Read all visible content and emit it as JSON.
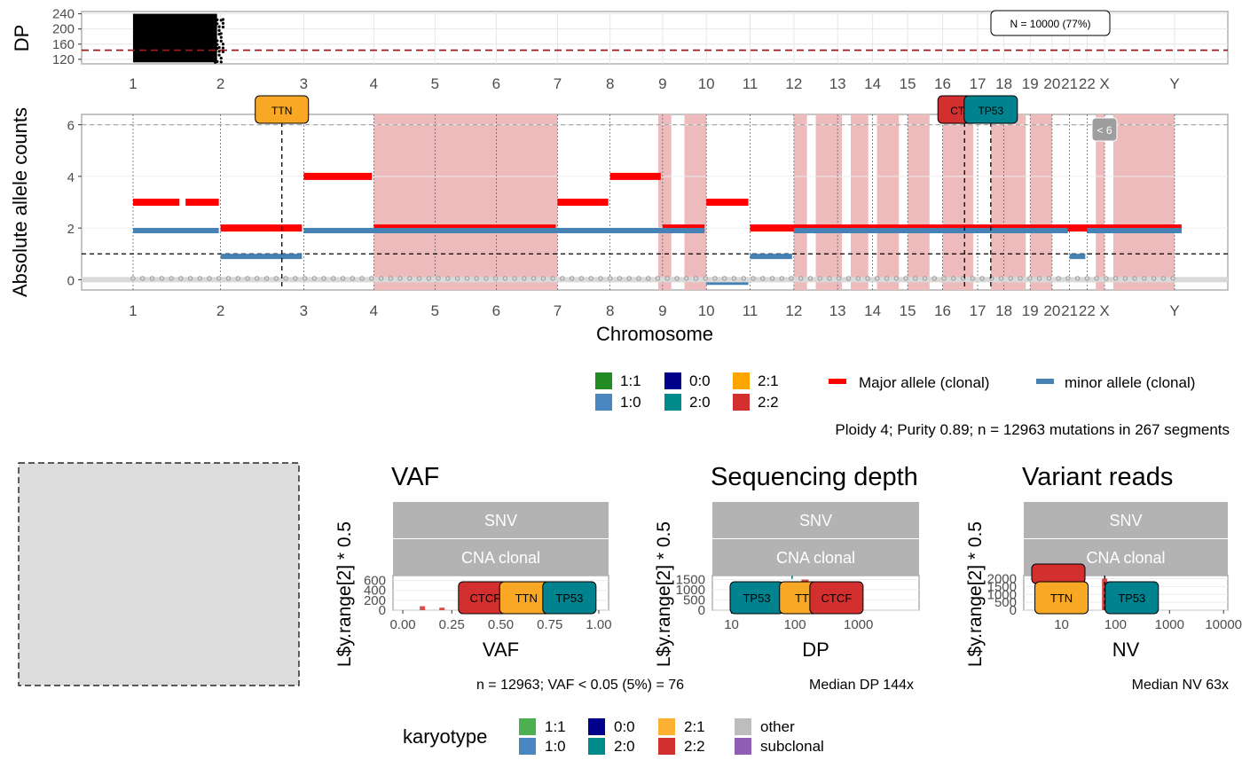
{
  "chart_data": [
    {
      "type": "scatter",
      "panel": "depth",
      "ylabel": "DP",
      "yticks": [
        120,
        160,
        200,
        240
      ],
      "ylim": [
        108,
        246
      ],
      "threshold_dp": 144,
      "annotation": "N = 10000 (77%)",
      "points_span": {
        "chromosomes": [
          "1",
          "2"
        ],
        "dp_range": [
          112,
          240
        ]
      }
    },
    {
      "type": "segments",
      "panel": "copy-number",
      "xlabel": "Chromosome",
      "ylabel": "Absolute allele counts",
      "yticks": [
        0,
        2,
        4,
        6
      ],
      "ylim": [
        -0.4,
        6.4
      ],
      "hlines": [
        1,
        6
      ],
      "chromosomes": [
        "1",
        "2",
        "3",
        "4",
        "5",
        "6",
        "7",
        "8",
        "9",
        "10",
        "11",
        "12",
        "13",
        "14",
        "15",
        "16",
        "17",
        "18",
        "19",
        "20",
        "21",
        "22",
        "X",
        "Y"
      ],
      "chr_offsets": [
        0,
        1.0,
        1.95,
        2.75,
        3.45,
        4.15,
        4.85,
        5.45,
        6.05,
        6.55,
        7.05,
        7.55,
        8.05,
        8.45,
        8.85,
        9.25,
        9.65,
        9.95,
        10.25,
        10.5,
        10.7,
        10.9,
        11.1,
        11.9,
        12.2
      ],
      "major_segments": [
        {
          "x0": 0,
          "x1": 0.55,
          "v": 3
        },
        {
          "x0": 0.6,
          "x1": 1.0,
          "v": 3
        },
        {
          "x0": 1.0,
          "x1": 1.95,
          "v": 2
        },
        {
          "x0": 1.95,
          "x1": 2.75,
          "v": 4
        },
        {
          "x0": 2.75,
          "x1": 4.85,
          "v": 2
        },
        {
          "x0": 4.85,
          "x1": 5.45,
          "v": 3
        },
        {
          "x0": 5.45,
          "x1": 6.05,
          "v": 4
        },
        {
          "x0": 6.05,
          "x1": 6.55,
          "v": 2
        },
        {
          "x0": 6.55,
          "x1": 7.05,
          "v": 3
        },
        {
          "x0": 7.05,
          "x1": 12.0,
          "v": 2
        }
      ],
      "minor_segments": [
        {
          "x0": 0,
          "x1": 1.0,
          "v": 1.9
        },
        {
          "x0": 1.0,
          "x1": 1.95,
          "v": 0.9
        },
        {
          "x0": 1.95,
          "x1": 6.55,
          "v": 1.9
        },
        {
          "x0": 6.55,
          "x1": 7.05,
          "v": -0.1
        },
        {
          "x0": 7.05,
          "x1": 7.55,
          "v": 0.9
        },
        {
          "x0": 7.55,
          "x1": 10.7,
          "v": 1.9
        },
        {
          "x0": 10.7,
          "x1": 10.9,
          "v": 0.9
        },
        {
          "x0": 10.9,
          "x1": 12.0,
          "v": 1.9
        }
      ],
      "shaded_regions": [
        [
          2.75,
          4.85
        ],
        [
          6.0,
          6.15
        ],
        [
          6.3,
          6.55
        ],
        [
          7.55,
          7.7
        ],
        [
          7.8,
          8.1
        ],
        [
          8.2,
          8.4
        ],
        [
          8.5,
          8.75
        ],
        [
          8.85,
          9.1
        ],
        [
          9.25,
          9.6
        ],
        [
          9.8,
          10.2
        ],
        [
          10.25,
          10.5
        ],
        [
          11.0,
          11.1
        ],
        [
          11.2,
          11.9
        ]
      ],
      "drivers": [
        {
          "name": "TTN",
          "chr_pos": 1.7,
          "color": "#f9a825"
        },
        {
          "name": "CTCF",
          "chr_pos": 9.5,
          "color": "#d32f2f"
        },
        {
          "name": "TP53",
          "chr_pos": 9.8,
          "color": "#00838f"
        }
      ],
      "small_label": "< 6",
      "legend_karyotype": [
        "1:1",
        "1:0",
        "0:0",
        "2:0",
        "2:1",
        "2:2"
      ],
      "legend_alleles": [
        "Major allele (clonal)",
        "minor allele (clonal)"
      ]
    },
    {
      "type": "bar",
      "panel": "vaf",
      "title": "VAF",
      "xlabel": "VAF",
      "ylabel": "L$y.range[2] * 0.5",
      "xticks": [
        "0.00",
        "0.25",
        "0.50",
        "0.75",
        "1.00"
      ],
      "yticks": [
        "0",
        "200",
        "400",
        "600"
      ],
      "xlim": [
        -0.05,
        1.05
      ],
      "ylim": [
        0,
        700
      ],
      "facets": [
        "SNV",
        "CNA clonal"
      ],
      "peaks": [
        {
          "x": 0.1,
          "y": 80
        },
        {
          "x": 0.2,
          "y": 50
        },
        {
          "x": 0.3,
          "y": 120
        },
        {
          "x": 0.4,
          "y": 300
        },
        {
          "x": 0.48,
          "y": 550
        },
        {
          "x": 0.6,
          "y": 250
        },
        {
          "x": 0.7,
          "y": 150
        },
        {
          "x": 0.9,
          "y": 100
        }
      ],
      "drivers": [
        {
          "name": "CTCF",
          "x": 0.42,
          "color": "#d32f2f"
        },
        {
          "name": "TTN",
          "x": 0.63,
          "color": "#f9a825"
        },
        {
          "name": "TP53",
          "x": 0.85,
          "color": "#00838f"
        }
      ],
      "caption": "n = 12963; VAF < 0.05 (5%) = 76"
    },
    {
      "type": "bar",
      "panel": "dp",
      "title": "Sequencing depth",
      "xlabel": "DP",
      "ylabel": "L$y.range[2] * 0.5",
      "xticks": [
        "10",
        "100",
        "1000"
      ],
      "yticks": [
        "0",
        "500",
        "1000",
        "1500"
      ],
      "log_x": true,
      "xlim": [
        5,
        9000
      ],
      "ylim": [
        0,
        1700
      ],
      "facets": [
        "SNV",
        "CNA clonal"
      ],
      "peak_dp": 144,
      "drivers": [
        {
          "name": "TP53",
          "x": 25,
          "color": "#00838f"
        },
        {
          "name": "TTN",
          "x": 150,
          "color": "#f9a825"
        },
        {
          "name": "CTCF",
          "x": 450,
          "color": "#d32f2f"
        }
      ],
      "caption": "Median DP 144x"
    },
    {
      "type": "bar",
      "panel": "nv",
      "title": "Variant reads",
      "xlabel": "NV",
      "ylabel": "L$y.range[2] * 0.5",
      "xticks": [
        "10",
        "100",
        "1000",
        "10000"
      ],
      "yticks": [
        "0",
        "500",
        "1000",
        "1500",
        "2000"
      ],
      "log_x": true,
      "xlim": [
        2,
        12000
      ],
      "ylim": [
        0,
        2200
      ],
      "facets": [
        "SNV",
        "CNA clonal"
      ],
      "peak_nv": 63,
      "drivers": [
        {
          "name": "TTN",
          "x": 10,
          "color": "#f9a825"
        },
        {
          "name": "TP53",
          "x": 200,
          "color": "#00838f"
        }
      ],
      "caption": "Median NV 63x"
    }
  ],
  "summary_text": "Ploidy 4; Purity  0.89; n = 12963 mutations in 267 segments",
  "legend_bottom": {
    "title": "karyotype",
    "items": [
      {
        "label": "1:1",
        "color": "#4caf50"
      },
      {
        "label": "1:0",
        "color": "#4a86c0"
      },
      {
        "label": "0:0",
        "color": "#00008b"
      },
      {
        "label": "2:0",
        "color": "#008b8b"
      },
      {
        "label": "2:1",
        "color": "#fbb132"
      },
      {
        "label": "2:2",
        "color": "#d32f2f"
      },
      {
        "label": "other",
        "color": "#bdbdbd"
      },
      {
        "label": "subclonal",
        "color": "#8e5fb5"
      }
    ]
  },
  "legend_top_colors": {
    "1:1": "#228b22",
    "1:0": "#4a86c0",
    "0:0": "#00008b",
    "2:0": "#008b8b",
    "2:1": "#ffa500",
    "2:2": "#d32f2f",
    "major": "#ff0000",
    "minor": "#4682b4"
  }
}
